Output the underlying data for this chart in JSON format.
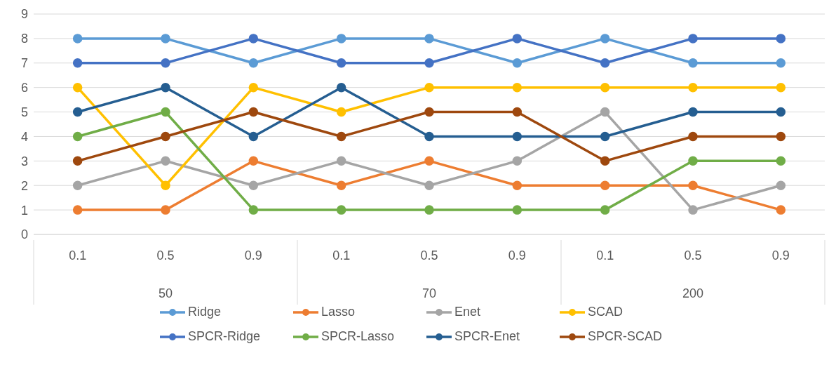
{
  "chart_data": {
    "type": "line",
    "categories": [
      "0.1",
      "0.5",
      "0.9",
      "0.1",
      "0.5",
      "0.9",
      "0.1",
      "0.5",
      "0.9"
    ],
    "annotations": [
      "50",
      "70",
      "200"
    ],
    "series": [
      {
        "name": "Ridge",
        "color": "#5b9bd5",
        "values": [
          8,
          8,
          7,
          8,
          8,
          7,
          8,
          7,
          7
        ]
      },
      {
        "name": "Lasso",
        "color": "#ed7d31",
        "values": [
          1,
          1,
          3,
          2,
          3,
          2,
          2,
          2,
          1
        ]
      },
      {
        "name": "Enet",
        "color": "#a5a5a5",
        "values": [
          2,
          3,
          2,
          3,
          2,
          3,
          5,
          1,
          2
        ]
      },
      {
        "name": "SCAD",
        "color": "#ffc000",
        "values": [
          6,
          2,
          6,
          5,
          6,
          6,
          6,
          6,
          6
        ]
      },
      {
        "name": "SPCR-Ridge",
        "color": "#4472c4",
        "values": [
          7,
          7,
          8,
          7,
          7,
          8,
          7,
          8,
          8
        ]
      },
      {
        "name": "SPCR-Lasso",
        "color": "#70ad47",
        "values": [
          4,
          5,
          1,
          1,
          1,
          1,
          1,
          3,
          3
        ]
      },
      {
        "name": "SPCR-Enet",
        "color": "#255e91",
        "values": [
          5,
          6,
          4,
          6,
          4,
          4,
          4,
          5,
          5
        ]
      },
      {
        "name": "SPCR-SCAD",
        "color": "#9e480e",
        "values": [
          3,
          4,
          5,
          4,
          5,
          5,
          3,
          4,
          4
        ]
      }
    ],
    "ylim": [
      0,
      9
    ],
    "yticks": [
      0,
      1,
      2,
      3,
      4,
      5,
      6,
      7,
      8,
      9
    ],
    "grid": "y",
    "legend": "bottom",
    "marker": "circle",
    "line_style": "solid"
  }
}
